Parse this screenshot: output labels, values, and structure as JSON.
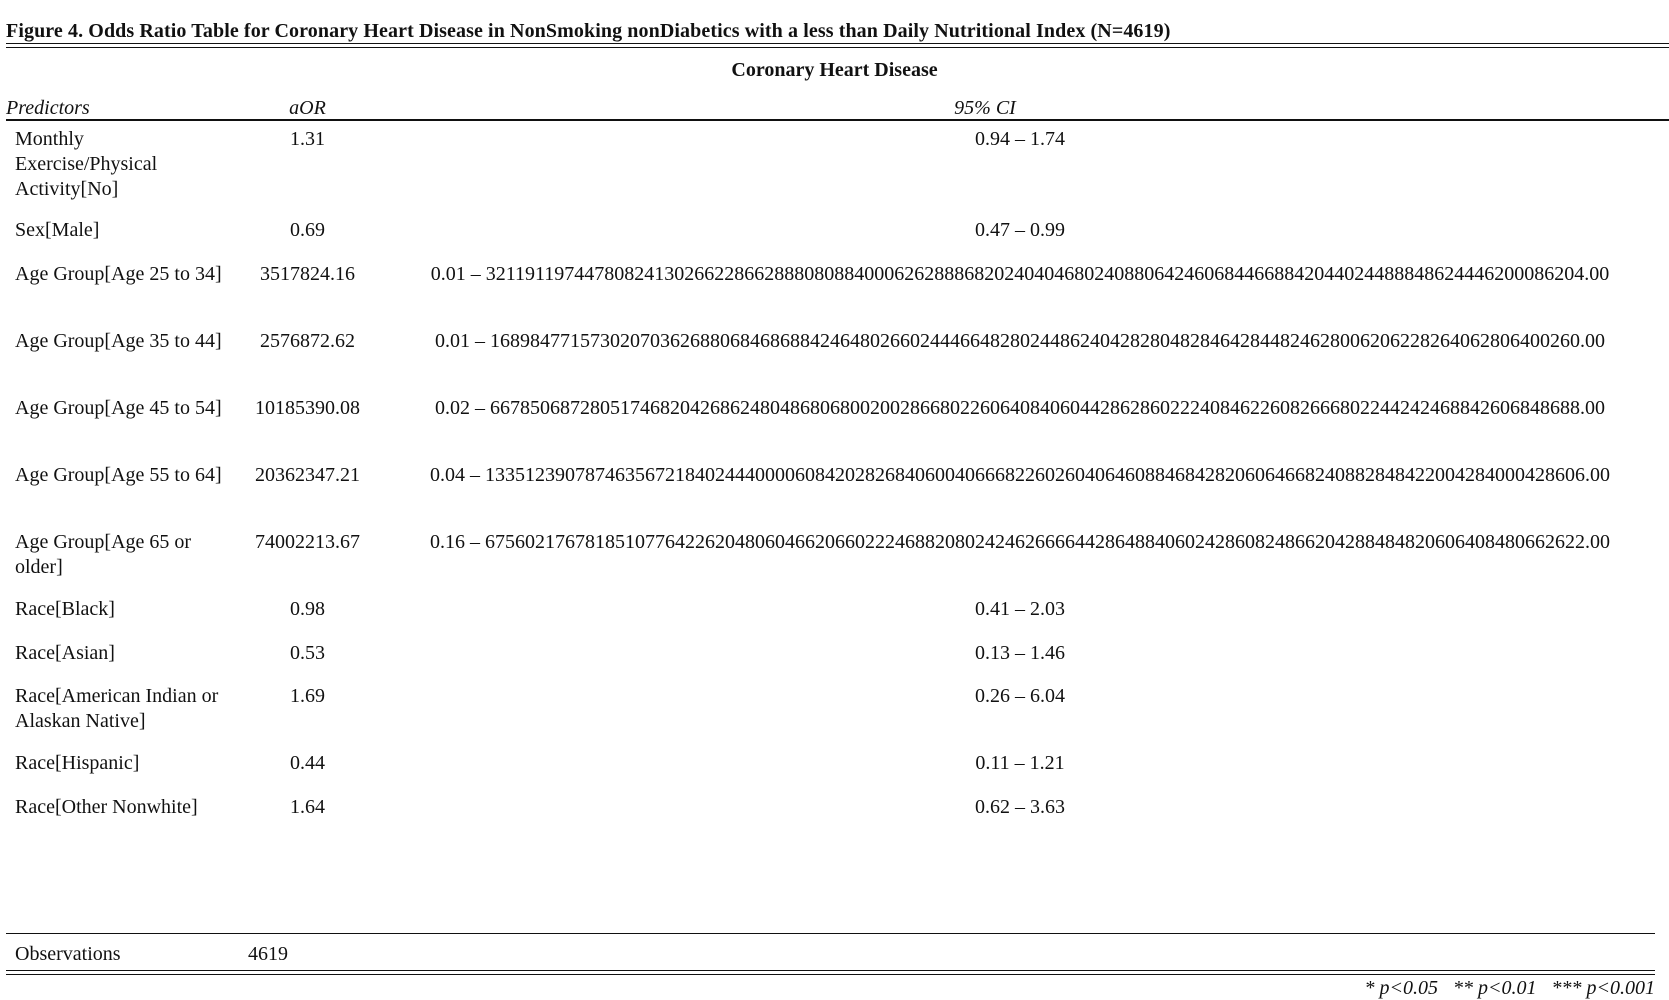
{
  "figure": {
    "title": "Figure 4. Odds Ratio Table for Coronary Heart Disease in NonSmoking nonDiabetics with a less than Daily Nutritional Index (N=4619)"
  },
  "table": {
    "outcome_caption": "Coronary Heart Disease",
    "headers": {
      "predictors": "Predictors",
      "aor": "aOR",
      "ci": "95% CI"
    },
    "rows": [
      {
        "predictor": "Monthly Exercise/Physical Activity[No]",
        "aor": "1.31",
        "ci": "0.94 – 1.74"
      },
      {
        "predictor": "Sex[Male]",
        "aor": "0.69",
        "ci": "0.47 – 0.99"
      },
      {
        "predictor": "Age Group[Age 25 to 34]",
        "aor": "3517824.16",
        "ci": "0.01 – 3211911974478082413026622866288808088400062628886820240404680240880642460684466884204402448884862444620008620​4.00"
      },
      {
        "predictor": "Age Group[Age 35 to 44]",
        "aor": "2576872.62",
        "ci": "0.01 – 168984771573020703626880684686884246480266024446648280244862404282804828464284482462800620622826406280640026​0.00"
      },
      {
        "predictor": "Age Group[Age 45 to 54]",
        "aor": "10185390.08",
        "ci": "0.02 – 667850687280517468204268624804868068002002866802260640840604428628602224084622608266680224424246884260684868​8.00"
      },
      {
        "predictor": "Age Group[Age 55 to 64]",
        "aor": "20362347.21",
        "ci": "0.04 – 13351239078746356721840244400006084202826840600406668226026040646088468428206064668240882848422004284000428606.00"
      },
      {
        "predictor": "Age Group[Age 65 or older]",
        "aor": "74002213.67",
        "ci": "0.16 – 67560217678185107764226204806046620660222468820802424626666442864884060242860824866204288484820606408480662622.00"
      },
      {
        "predictor": "Race[Black]",
        "aor": "0.98",
        "ci": "0.41 – 2.03"
      },
      {
        "predictor": "Race[Asian]",
        "aor": "0.53",
        "ci": "0.13 – 1.46"
      },
      {
        "predictor": "Race[American Indian or Alaskan Native]",
        "aor": "1.69",
        "ci": "0.26 – 6.04"
      },
      {
        "predictor": "Race[Hispanic]",
        "aor": "0.44",
        "ci": "0.11 – 1.21"
      },
      {
        "predictor": "Race[Other Nonwhite]",
        "aor": "1.64",
        "ci": "0.62 – 3.63"
      }
    ],
    "observations": {
      "label": "Observations",
      "value": "4619"
    }
  },
  "footnote": "* p<0.05   ** p<0.01   *** p<0.001"
}
